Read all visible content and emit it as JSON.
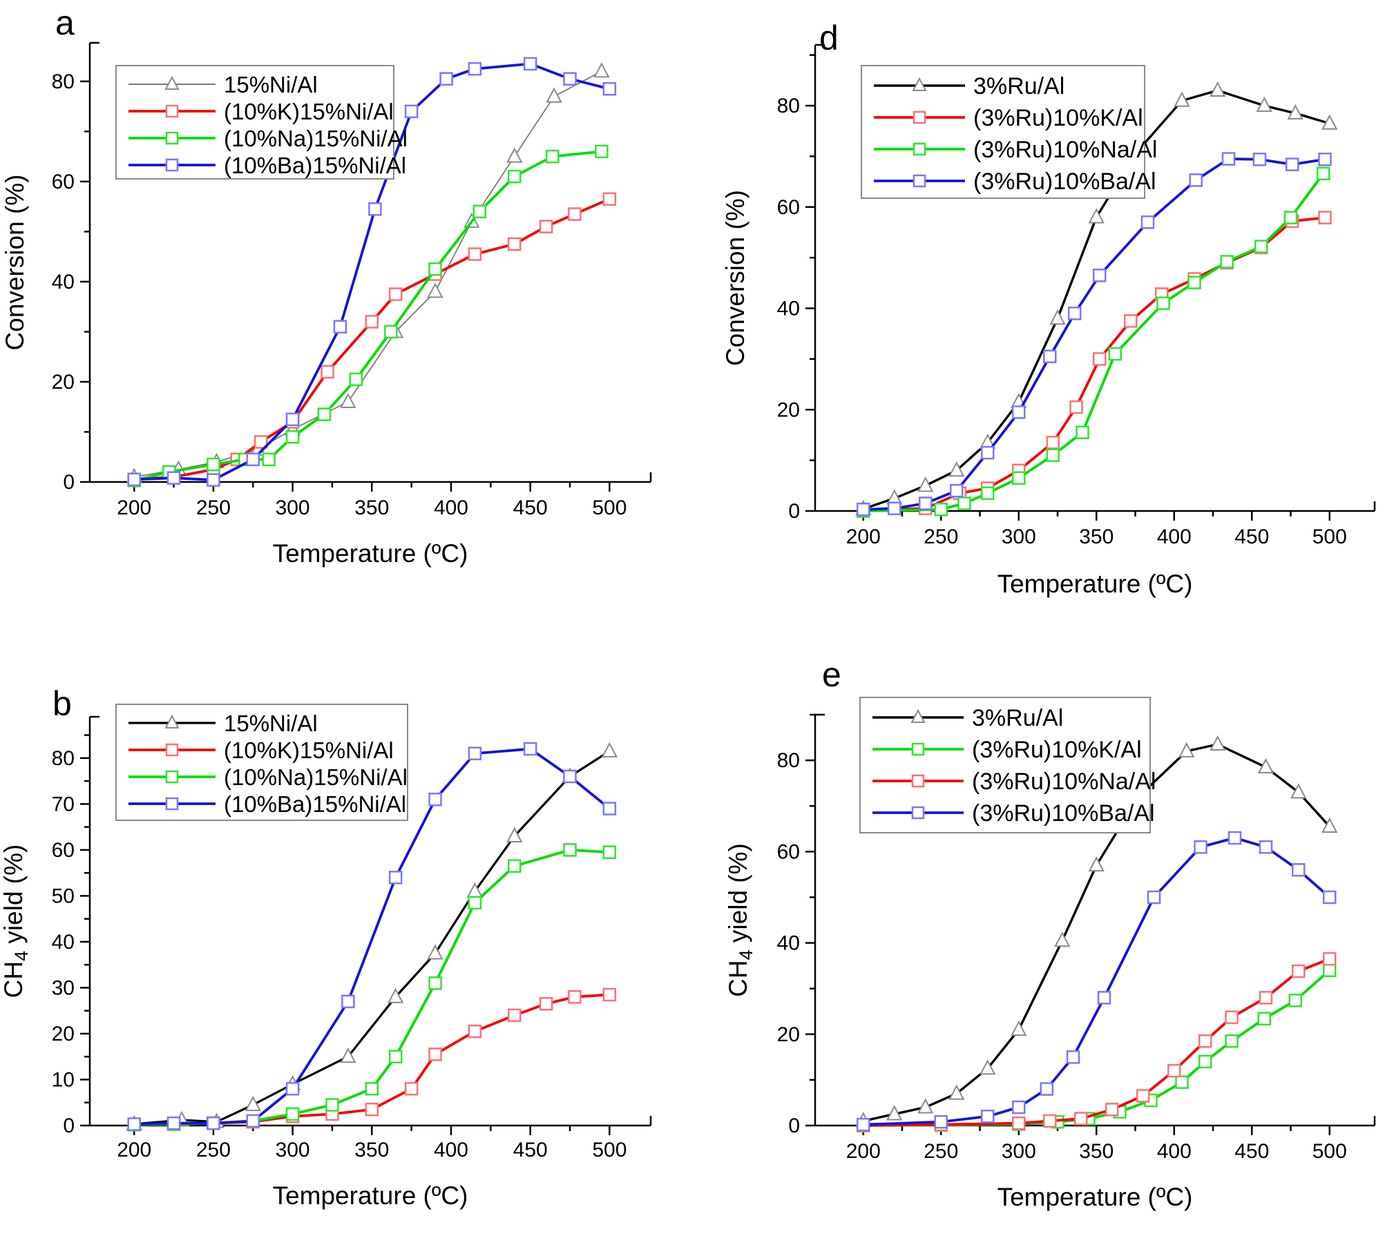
{
  "figure": {
    "panels": [
      {
        "id": "a",
        "letter": "a"
      },
      {
        "id": "d",
        "letter": "d"
      },
      {
        "id": "b",
        "letter": "b"
      },
      {
        "id": "e",
        "letter": "e"
      }
    ]
  },
  "chart_data": [
    {
      "id": "a",
      "type": "line",
      "title": "",
      "xlabel": "Temperature (ºC)",
      "ylabel_parts": {
        "pre": "Conversion (%)",
        "sub": "",
        "post": ""
      },
      "x_axis": {
        "lim": [
          172,
          526
        ],
        "major": [
          200,
          250,
          300,
          350,
          400,
          450,
          500
        ],
        "minor": [
          225,
          275,
          325,
          375,
          425,
          475
        ]
      },
      "y_axis": {
        "lim": [
          0,
          87.7
        ],
        "major": [
          0,
          20,
          40,
          60,
          80
        ],
        "minor": [
          10,
          30,
          50,
          70
        ]
      },
      "grid": false,
      "legend_position": "top-left",
      "series": [
        {
          "name": "15%Ni/Al",
          "color": "#7a7a7a",
          "marker": "triangle",
          "marker_stroke": "#8a8a8a",
          "line_width": 1.8,
          "x": [
            200,
            228,
            252,
            278,
            300,
            335,
            365,
            390,
            413,
            440,
            465,
            495
          ],
          "y": [
            1,
            2.5,
            4,
            6.5,
            10.5,
            16,
            30,
            38,
            52,
            65,
            77,
            82
          ]
        },
        {
          "name": "(10%K)15%Ni/Al",
          "color": "#f40000",
          "marker": "square",
          "marker_stroke": "#ff7070",
          "line_width": 3.8,
          "x": [
            200,
            225,
            250,
            265,
            280,
            300,
            322,
            350,
            365,
            390,
            415,
            440,
            460,
            478,
            500
          ],
          "y": [
            0.5,
            1,
            2.5,
            4.5,
            8,
            12,
            22,
            32,
            37.5,
            41.5,
            45.5,
            47.5,
            51,
            53.5,
            56.5
          ]
        },
        {
          "name": "(10%Na)15%Ni/Al",
          "color": "#00dc00",
          "marker": "square",
          "marker_stroke": "#2ee62e",
          "line_width": 3.8,
          "x": [
            200,
            222,
            250,
            270,
            285,
            300,
            320,
            340,
            362,
            390,
            418,
            440,
            464,
            495
          ],
          "y": [
            0.3,
            2,
            3.5,
            4.5,
            4.5,
            9,
            13.5,
            20.5,
            30,
            42.5,
            54,
            61,
            65,
            66
          ]
        },
        {
          "name": "(10%Ba)15%Ni/Al",
          "color": "#1414dc",
          "marker": "square",
          "marker_stroke": "#7878ff",
          "line_width": 3.8,
          "x": [
            200,
            225,
            250,
            275,
            300,
            330,
            352,
            375,
            397,
            415,
            450,
            475,
            500
          ],
          "y": [
            0.5,
            0.8,
            0.4,
            4.5,
            12.5,
            31,
            54.5,
            74,
            80.5,
            82.5,
            83.5,
            80.5,
            78.5
          ]
        }
      ]
    },
    {
      "id": "d",
      "type": "line",
      "title": "",
      "xlabel": "Temperature (ºC)",
      "ylabel_parts": {
        "pre": "Conversion (%)",
        "sub": "",
        "post": ""
      },
      "x_axis": {
        "lim": [
          169,
          529
        ],
        "major": [
          200,
          250,
          300,
          350,
          400,
          450,
          500
        ],
        "minor": [
          225,
          275,
          325,
          375,
          425,
          475
        ]
      },
      "y_axis": {
        "lim": [
          0,
          92
        ],
        "major": [
          0,
          20,
          40,
          60,
          80
        ],
        "minor": [
          10,
          30,
          50,
          70,
          90
        ]
      },
      "grid": false,
      "legend_position": "top-left",
      "series": [
        {
          "name": "3%Ru/Al",
          "color": "#000000",
          "marker": "triangle",
          "marker_stroke": "#8a8a8a",
          "line_width": 3.4,
          "x": [
            200,
            220,
            240,
            260,
            280,
            300,
            325,
            350,
            375,
            405,
            428,
            458,
            478,
            500
          ],
          "y": [
            0.4,
            2.5,
            5,
            8,
            13.5,
            21.5,
            38,
            58,
            70.5,
            81,
            83,
            80,
            78.5,
            76.5
          ]
        },
        {
          "name": "(3%Ru)10%K/Al",
          "color": "#f40000",
          "marker": "square",
          "marker_stroke": "#ff7070",
          "line_width": 3.8,
          "x": [
            200,
            240,
            262,
            280,
            300,
            322,
            337,
            352,
            372,
            392,
            413,
            434,
            456,
            476,
            497
          ],
          "y": [
            0,
            0.5,
            3.5,
            4.5,
            8,
            13.5,
            20.5,
            30,
            37.5,
            42.8,
            45.8,
            49,
            52,
            57.2,
            57.9
          ]
        },
        {
          "name": "(3%Ru)10%Na/Al",
          "color": "#00dc00",
          "marker": "square",
          "marker_stroke": "#2ee62e",
          "line_width": 3.8,
          "x": [
            200,
            250,
            265,
            280,
            300,
            322,
            341,
            362,
            393,
            413,
            434,
            456,
            475,
            496
          ],
          "y": [
            0,
            0.3,
            1.5,
            3.5,
            6.5,
            11,
            15.5,
            31,
            41,
            45.1,
            49.2,
            52.2,
            57.9,
            66.6
          ]
        },
        {
          "name": "(3%Ru)10%Ba/Al",
          "color": "#1414dc",
          "marker": "square",
          "marker_stroke": "#7878ff",
          "line_width": 3.8,
          "x": [
            200,
            220,
            240,
            260,
            280,
            300,
            320,
            336,
            352,
            383,
            414,
            435,
            455,
            476,
            497
          ],
          "y": [
            0.3,
            0.5,
            1.5,
            4,
            11.5,
            19.5,
            30.5,
            39,
            46.5,
            57,
            65.3,
            69.5,
            69.4,
            68.4,
            69.4
          ]
        }
      ]
    },
    {
      "id": "b",
      "type": "line",
      "title": "",
      "xlabel": "Temperature (ºC)",
      "ylabel_parts": {
        "pre": "CH",
        "sub": "4",
        "post": " yield (%)"
      },
      "x_axis": {
        "lim": [
          172,
          526
        ],
        "major": [
          200,
          250,
          300,
          350,
          400,
          450,
          500
        ],
        "minor": [
          225,
          275,
          325,
          375,
          425,
          475
        ]
      },
      "y_axis": {
        "lim": [
          0,
          89
        ],
        "major": [
          0,
          10,
          20,
          30,
          40,
          50,
          60,
          70,
          80
        ],
        "minor": [
          5,
          15,
          25,
          35,
          45,
          55,
          65,
          75,
          85
        ]
      },
      "grid": false,
      "legend_position": "top-left",
      "series": [
        {
          "name": "15%Ni/Al",
          "color": "#000000",
          "marker": "triangle",
          "marker_stroke": "#8a8a8a",
          "line_width": 3.2,
          "x": [
            200,
            230,
            252,
            275,
            300,
            335,
            365,
            390,
            415,
            440,
            475,
            500
          ],
          "y": [
            0.3,
            1.2,
            0.8,
            4.5,
            9,
            15,
            28,
            37.5,
            51,
            63,
            76,
            81.5
          ]
        },
        {
          "name": "(10%K)15%Ni/Al",
          "color": "#f40000",
          "marker": "square",
          "marker_stroke": "#ff7070",
          "line_width": 3.8,
          "x": [
            200,
            225,
            250,
            275,
            300,
            325,
            350,
            375,
            390,
            415,
            440,
            460,
            478,
            500
          ],
          "y": [
            0.2,
            0.3,
            0.5,
            0.8,
            2,
            2.5,
            3.5,
            8,
            15.5,
            20.5,
            24,
            26.5,
            28,
            28.5
          ]
        },
        {
          "name": "(10%Na)15%Ni/Al",
          "color": "#00dc00",
          "marker": "square",
          "marker_stroke": "#2ee62e",
          "line_width": 3.8,
          "x": [
            200,
            225,
            250,
            275,
            300,
            325,
            350,
            365,
            390,
            415,
            440,
            475,
            500
          ],
          "y": [
            0.2,
            0.3,
            0.5,
            1,
            2.5,
            4.5,
            8,
            15,
            31,
            48.5,
            56.5,
            60,
            59.5
          ]
        },
        {
          "name": "(10%Ba)15%Ni/Al",
          "color": "#1414dc",
          "marker": "square",
          "marker_stroke": "#7878ff",
          "line_width": 3.8,
          "x": [
            200,
            225,
            250,
            275,
            300,
            335,
            365,
            390,
            415,
            450,
            475,
            500
          ],
          "y": [
            0.3,
            0.5,
            0.5,
            1,
            8,
            27,
            54,
            71,
            81,
            82,
            76,
            69
          ]
        }
      ]
    },
    {
      "id": "e",
      "type": "line",
      "title": "",
      "xlabel": "Temperature (ºC)",
      "ylabel_parts": {
        "pre": "CH",
        "sub": "4",
        "post": " yield (%)"
      },
      "x_axis": {
        "lim": [
          169,
          529
        ],
        "major": [
          200,
          250,
          300,
          350,
          400,
          450,
          500
        ],
        "minor": [
          225,
          275,
          325,
          375,
          425,
          475
        ]
      },
      "y_axis": {
        "lim": [
          0,
          90
        ],
        "major": [
          0,
          20,
          40,
          60,
          80
        ],
        "minor": [
          10,
          30,
          50,
          70,
          90
        ]
      },
      "grid": false,
      "legend_position": "top-left",
      "series": [
        {
          "name": "3%Ru/Al",
          "color": "#000000",
          "marker": "triangle",
          "marker_stroke": "#8a8a8a",
          "line_width": 3.4,
          "x": [
            200,
            220,
            240,
            260,
            280,
            300,
            328,
            350,
            377,
            408,
            428,
            459,
            480,
            500
          ],
          "y": [
            1,
            2.5,
            4,
            7,
            12.5,
            21,
            40.5,
            57,
            72,
            82,
            83.5,
            78.5,
            73,
            65.5
          ]
        },
        {
          "name": "(3%Ru)10%K/Al",
          "color": "#00dc00",
          "marker": "square",
          "marker_stroke": "#2ee62e",
          "line_width": 3.8,
          "x": [
            200,
            250,
            300,
            325,
            345,
            365,
            385,
            405,
            420,
            437,
            458,
            478,
            500
          ],
          "y": [
            0,
            0.1,
            0.3,
            0.8,
            1.5,
            3,
            5.5,
            9.5,
            14,
            18.5,
            23.4,
            27.4,
            34
          ]
        },
        {
          "name": "(3%Ru)10%Na/Al",
          "color": "#f40000",
          "marker": "square",
          "marker_stroke": "#ff7070",
          "line_width": 3.8,
          "x": [
            200,
            250,
            300,
            320,
            340,
            360,
            380,
            400,
            420,
            437,
            459,
            480,
            500
          ],
          "y": [
            0,
            0.2,
            0.5,
            1,
            1.5,
            3.5,
            6.5,
            12,
            18.5,
            23.7,
            28,
            33.8,
            36.5
          ]
        },
        {
          "name": "(3%Ru)10%Ba/Al",
          "color": "#1414dc",
          "marker": "square",
          "marker_stroke": "#7878ff",
          "line_width": 3.8,
          "x": [
            200,
            250,
            280,
            300,
            318,
            335,
            355,
            387,
            417,
            439,
            459,
            480,
            500
          ],
          "y": [
            0.2,
            0.8,
            2,
            4,
            8,
            15,
            28,
            50,
            61,
            63,
            61,
            56,
            50
          ]
        }
      ]
    }
  ]
}
